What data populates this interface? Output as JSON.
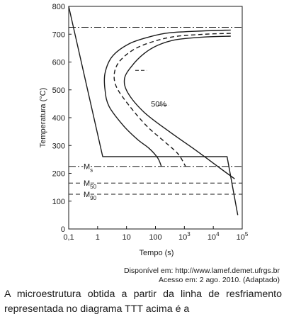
{
  "chart_data": {
    "type": "line",
    "title": "",
    "xlabel": "Tempo (s)",
    "ylabel": "Temperatura (°C)",
    "xscale": "log",
    "xlim": [
      0.1,
      100000
    ],
    "ylim": [
      0,
      800
    ],
    "x_ticks": [
      {
        "value": 0.1,
        "base": "0,1",
        "exp": ""
      },
      {
        "value": 1,
        "base": "1",
        "exp": ""
      },
      {
        "value": 10,
        "base": "10",
        "exp": ""
      },
      {
        "value": 100,
        "base": "100",
        "exp": ""
      },
      {
        "value": 1000,
        "base": "10",
        "exp": "3"
      },
      {
        "value": 10000,
        "base": "10",
        "exp": "4"
      },
      {
        "value": 100000,
        "base": "10",
        "exp": "5"
      }
    ],
    "y_ticks": [
      0,
      100,
      200,
      300,
      400,
      500,
      600,
      700,
      800
    ],
    "reference_lines": [
      {
        "label": "",
        "y": 725,
        "style": "dash-dot"
      },
      {
        "label": "M",
        "sub": "s",
        "y": 225,
        "style": "dash-dot"
      },
      {
        "label": "M",
        "sub": "50",
        "y": 165,
        "style": "dashed"
      },
      {
        "label": "M",
        "sub": "90",
        "y": 125,
        "style": "dashed"
      }
    ],
    "series": [
      {
        "role": "start-curve",
        "style": "solid",
        "x": [
          40000,
          5000,
          300,
          60,
          12,
          3.2,
          1.8,
          1.8,
          2.5,
          8,
          25,
          60,
          120,
          160
        ],
        "y": [
          715,
          712,
          705,
          690,
          665,
          620,
          560,
          500,
          440,
          370,
          320,
          290,
          255,
          225
        ]
      },
      {
        "role": "50-percent-curve",
        "style": "dashed",
        "x": [
          40000,
          5000,
          500,
          100,
          20,
          6,
          3.8,
          4.5,
          12,
          50,
          200,
          600,
          1100
        ],
        "y": [
          703,
          700,
          692,
          676,
          648,
          605,
          560,
          510,
          445,
          370,
          315,
          270,
          225
        ]
      },
      {
        "role": "end-curve",
        "style": "solid",
        "x": [
          40000,
          5000,
          500,
          120,
          40,
          15,
          8.5,
          11,
          40,
          300,
          2000,
          9000,
          30000,
          55000
        ],
        "y": [
          693,
          690,
          680,
          660,
          630,
          585,
          540,
          490,
          420,
          350,
          290,
          240,
          200,
          180
        ]
      },
      {
        "role": "cooling-path",
        "style": "solid",
        "x": [
          0.1,
          1.5,
          30000,
          70000
        ],
        "y": [
          800,
          260,
          260,
          50
        ]
      }
    ],
    "annotations": [
      {
        "text": "50%",
        "x": 70,
        "y": 450
      }
    ],
    "hold_marks": [
      {
        "x1": 20,
        "x2": 50,
        "y": 570
      },
      {
        "x1": 120,
        "x2": 300,
        "y": 445
      }
    ]
  },
  "source_line1": "Disponível em: http://www.lamef.demet.ufrgs.br",
  "source_line2": "Acesso em: 2 ago. 2010. (Adaptado)",
  "question_line1": "A microestrutura obtida a partir da linha de resfriamento",
  "question_line2": "representada no diagrama TTT acima é a"
}
